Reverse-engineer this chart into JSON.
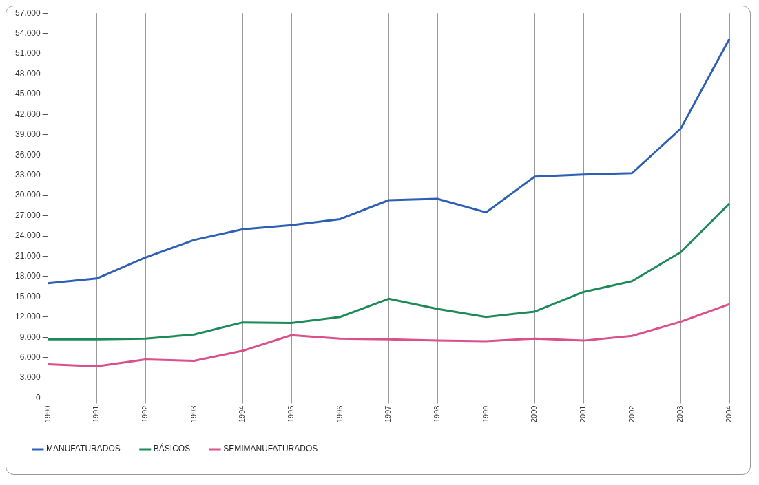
{
  "chart_data": {
    "type": "line",
    "categories": [
      "1990",
      "1991",
      "1992",
      "1993",
      "1994",
      "1995",
      "1996",
      "1997",
      "1998",
      "1999",
      "2000",
      "2001",
      "2002",
      "2003",
      "2004"
    ],
    "series": [
      {
        "name": "MANUFATURADOS",
        "color": "#2e5fb4",
        "values": [
          17000,
          17700,
          20800,
          23400,
          25000,
          25600,
          26500,
          29300,
          29500,
          27500,
          32800,
          33100,
          33300,
          39900,
          53200
        ]
      },
      {
        "name": "BÁSICOS",
        "color": "#1e8a5a",
        "values": [
          8700,
          8700,
          8800,
          9400,
          11200,
          11100,
          12000,
          14700,
          13200,
          12000,
          12800,
          15700,
          17300,
          21600,
          28800
        ]
      },
      {
        "name": "SEMIMANUFATURADOS",
        "color": "#d9508a",
        "values": [
          5000,
          4700,
          5700,
          5500,
          7000,
          9300,
          8800,
          8700,
          8500,
          8400,
          8800,
          8500,
          9200,
          11300,
          13900
        ]
      }
    ],
    "ylim": [
      0,
      57000
    ],
    "yticks": [
      {
        "value": 0,
        "label": "0"
      },
      {
        "value": 3000,
        "label": "3.000"
      },
      {
        "value": 6000,
        "label": "6.000"
      },
      {
        "value": 9000,
        "label": "9.000"
      },
      {
        "value": 12000,
        "label": "12.000"
      },
      {
        "value": 15000,
        "label": "15.000"
      },
      {
        "value": 18000,
        "label": "18.000"
      },
      {
        "value": 21000,
        "label": "21.000"
      },
      {
        "value": 24000,
        "label": "24.000"
      },
      {
        "value": 27000,
        "label": "27.000"
      },
      {
        "value": 30000,
        "label": "30.000"
      },
      {
        "value": 33000,
        "label": "33.000"
      },
      {
        "value": 36000,
        "label": "36.000"
      },
      {
        "value": 39000,
        "label": "39.000"
      },
      {
        "value": 42000,
        "label": "42.000"
      },
      {
        "value": 45000,
        "label": "45.000"
      },
      {
        "value": 48000,
        "label": "48.000"
      },
      {
        "value": 51000,
        "label": "51.000"
      },
      {
        "value": 54000,
        "label": "54.000"
      },
      {
        "value": 57000,
        "label": "57.000"
      }
    ],
    "grid": "x",
    "legend": "bottom left",
    "marker": "none",
    "line_style": "solid"
  }
}
